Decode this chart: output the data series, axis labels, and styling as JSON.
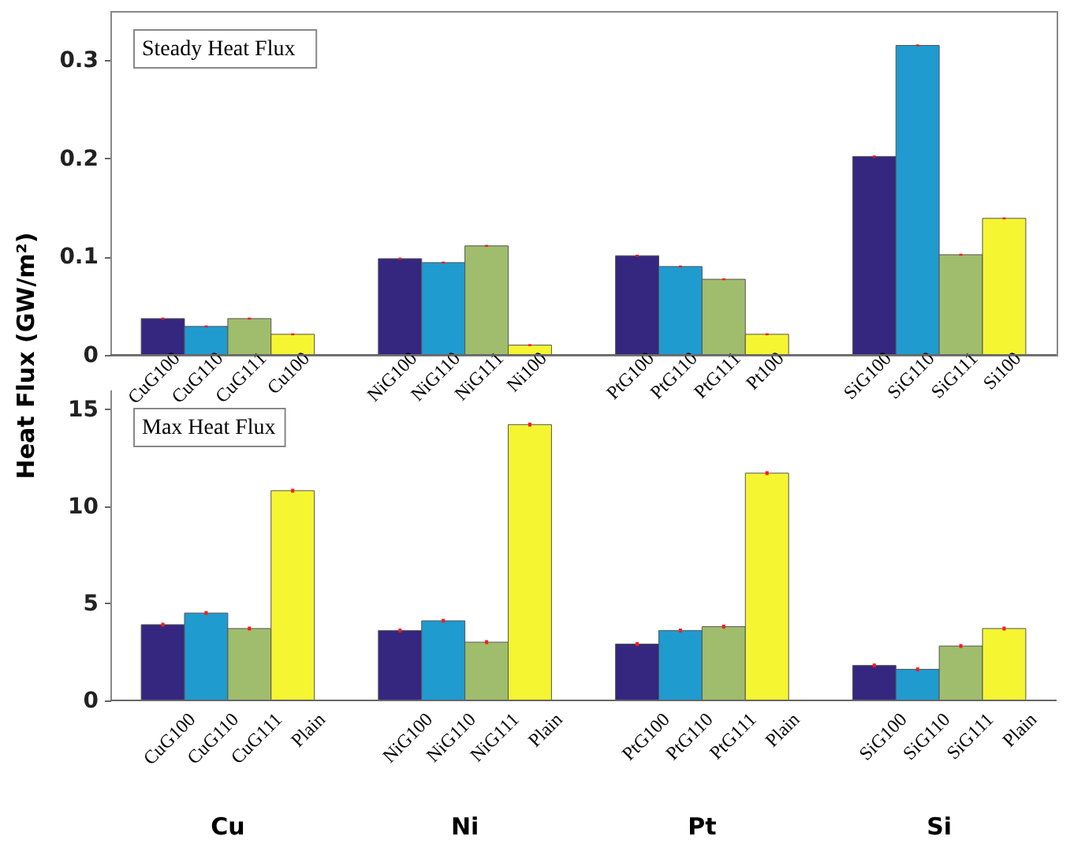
{
  "chart_data": [
    {
      "type": "bar",
      "title": "Steady Heat Flux",
      "ylabel": "Heat Flux (GW/m²)",
      "categories": [
        "CuG100",
        "CuG110",
        "CuG111",
        "Cu100",
        "NiG100",
        "NiG110",
        "NiG111",
        "Ni100",
        "PtG100",
        "PtG110",
        "PtG111",
        "Pt100",
        "SiG100",
        "SiG110",
        "SiG111",
        "Si100"
      ],
      "values": [
        0.037,
        0.029,
        0.037,
        0.021,
        0.098,
        0.094,
        0.111,
        0.01,
        0.101,
        0.09,
        0.077,
        0.021,
        0.202,
        0.315,
        0.102,
        0.139
      ],
      "colors": [
        "#35267f",
        "#1f9bd0",
        "#9fbd6c",
        "#f5f532",
        "#35267f",
        "#1f9bd0",
        "#9fbd6c",
        "#f5f532",
        "#35267f",
        "#1f9bd0",
        "#9fbd6c",
        "#f5f532",
        "#35267f",
        "#1f9bd0",
        "#9fbd6c",
        "#f5f532"
      ],
      "errors": [
        0.001,
        0.001,
        0.001,
        0.001,
        0.001,
        0.001,
        0.001,
        0.001,
        0.001,
        0.001,
        0.001,
        0.001,
        0.001,
        0.001,
        0.001,
        0.001
      ],
      "ylim": [
        0,
        0.35
      ],
      "yticks": [
        0,
        0.1,
        0.2,
        0.3
      ]
    },
    {
      "type": "bar",
      "title": "Max Heat Flux",
      "categories": [
        "CuG100",
        "CuG110",
        "CuG111",
        "Plain",
        "NiG100",
        "NiG110",
        "NiG111",
        "Plain",
        "PtG100",
        "PtG110",
        "PtG111",
        "Plain",
        "SiG100",
        "SiG110",
        "SiG111",
        "Plain"
      ],
      "values": [
        3.9,
        4.5,
        3.7,
        10.8,
        3.6,
        4.1,
        3.0,
        14.2,
        2.9,
        3.6,
        3.8,
        11.7,
        1.8,
        1.6,
        2.8,
        3.7
      ],
      "colors": [
        "#35267f",
        "#1f9bd0",
        "#9fbd6c",
        "#f5f532",
        "#35267f",
        "#1f9bd0",
        "#9fbd6c",
        "#f5f532",
        "#35267f",
        "#1f9bd0",
        "#9fbd6c",
        "#f5f532",
        "#35267f",
        "#1f9bd0",
        "#9fbd6c",
        "#f5f532"
      ],
      "errors": [
        0.1,
        0.1,
        0.1,
        0.1,
        0.1,
        0.1,
        0.1,
        0.1,
        0.1,
        0.1,
        0.1,
        0.1,
        0.1,
        0.1,
        0.1,
        0.1
      ],
      "annotations": [
        "Cu",
        "Ni",
        "Pt",
        "Si"
      ],
      "ylim": [
        0,
        16
      ],
      "yticks": [
        0,
        5,
        10,
        15
      ]
    }
  ]
}
